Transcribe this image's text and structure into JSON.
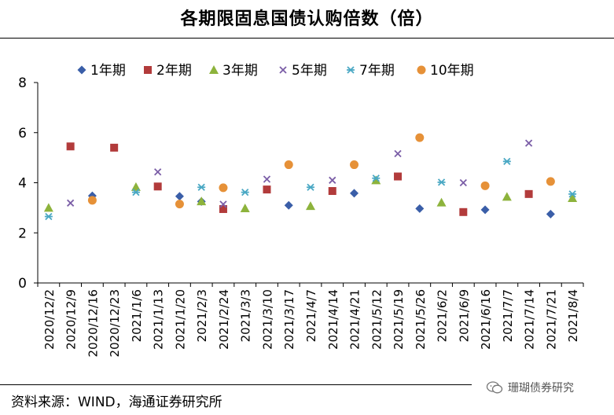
{
  "title": "各期限固息国债认购倍数（倍）",
  "source": "资料来源：WIND，海通证券研究所",
  "watermark": "珊瑚债券研究",
  "chart_data": {
    "type": "scatter",
    "title": "各期限固息国债认购倍数（倍）",
    "ylim": [
      0,
      8
    ],
    "yticks": [
      "0",
      "2",
      "4",
      "6",
      "8"
    ],
    "categories": [
      "2020/12/2",
      "2020/12/9",
      "2020/12/16",
      "2020/12/23",
      "2021/1/6",
      "2021/1/13",
      "2021/1/20",
      "2021/2/3",
      "2021/2/24",
      "2021/3/3",
      "2021/3/10",
      "2021/3/17",
      "2021/4/7",
      "2021/4/14",
      "2021/4/21",
      "2021/5/12",
      "2021/5/19",
      "2021/5/26",
      "2021/6/2",
      "2021/6/9",
      "2021/6/16",
      "2021/7/7",
      "2021/7/14",
      "2021/7/21",
      "2021/8/4"
    ],
    "legend_position": "top",
    "series": [
      {
        "name": "1年期",
        "marker": "diamond",
        "color": "#3a5ea8",
        "values": [
          null,
          null,
          3.48,
          null,
          null,
          null,
          3.46,
          3.25,
          null,
          null,
          null,
          3.1,
          null,
          null,
          3.58,
          null,
          null,
          2.97,
          null,
          null,
          2.92,
          null,
          null,
          2.75,
          null
        ]
      },
      {
        "name": "2年期",
        "marker": "square",
        "color": "#b23b3b",
        "values": [
          null,
          5.45,
          null,
          5.4,
          null,
          3.85,
          null,
          null,
          2.95,
          null,
          3.73,
          null,
          null,
          3.67,
          null,
          null,
          4.25,
          null,
          null,
          2.83,
          null,
          null,
          3.55,
          null,
          null
        ]
      },
      {
        "name": "3年期",
        "marker": "triangle",
        "color": "#8db33c",
        "values": [
          3.0,
          null,
          null,
          null,
          3.83,
          null,
          null,
          3.26,
          null,
          2.98,
          null,
          null,
          3.07,
          null,
          null,
          4.1,
          null,
          null,
          3.21,
          null,
          null,
          3.44,
          null,
          null,
          3.39
        ]
      },
      {
        "name": "5年期",
        "marker": "x",
        "color": "#7b5ea7",
        "values": [
          null,
          3.19,
          null,
          null,
          null,
          4.43,
          null,
          null,
          3.14,
          null,
          4.14,
          null,
          null,
          4.1,
          null,
          null,
          5.16,
          null,
          null,
          4.0,
          null,
          null,
          5.58,
          null,
          null
        ]
      },
      {
        "name": "7年期",
        "marker": "star",
        "color": "#4aa8c4",
        "values": [
          2.65,
          null,
          null,
          null,
          3.62,
          null,
          null,
          3.82,
          null,
          3.62,
          null,
          null,
          3.82,
          null,
          null,
          4.18,
          null,
          null,
          4.02,
          null,
          null,
          4.85,
          null,
          null,
          3.55
        ]
      },
      {
        "name": "10年期",
        "marker": "circle",
        "color": "#e69138",
        "values": [
          null,
          null,
          3.3,
          null,
          null,
          null,
          3.15,
          null,
          3.8,
          null,
          null,
          4.72,
          null,
          null,
          4.72,
          null,
          null,
          5.8,
          null,
          null,
          3.88,
          null,
          null,
          4.05,
          null
        ]
      }
    ]
  }
}
